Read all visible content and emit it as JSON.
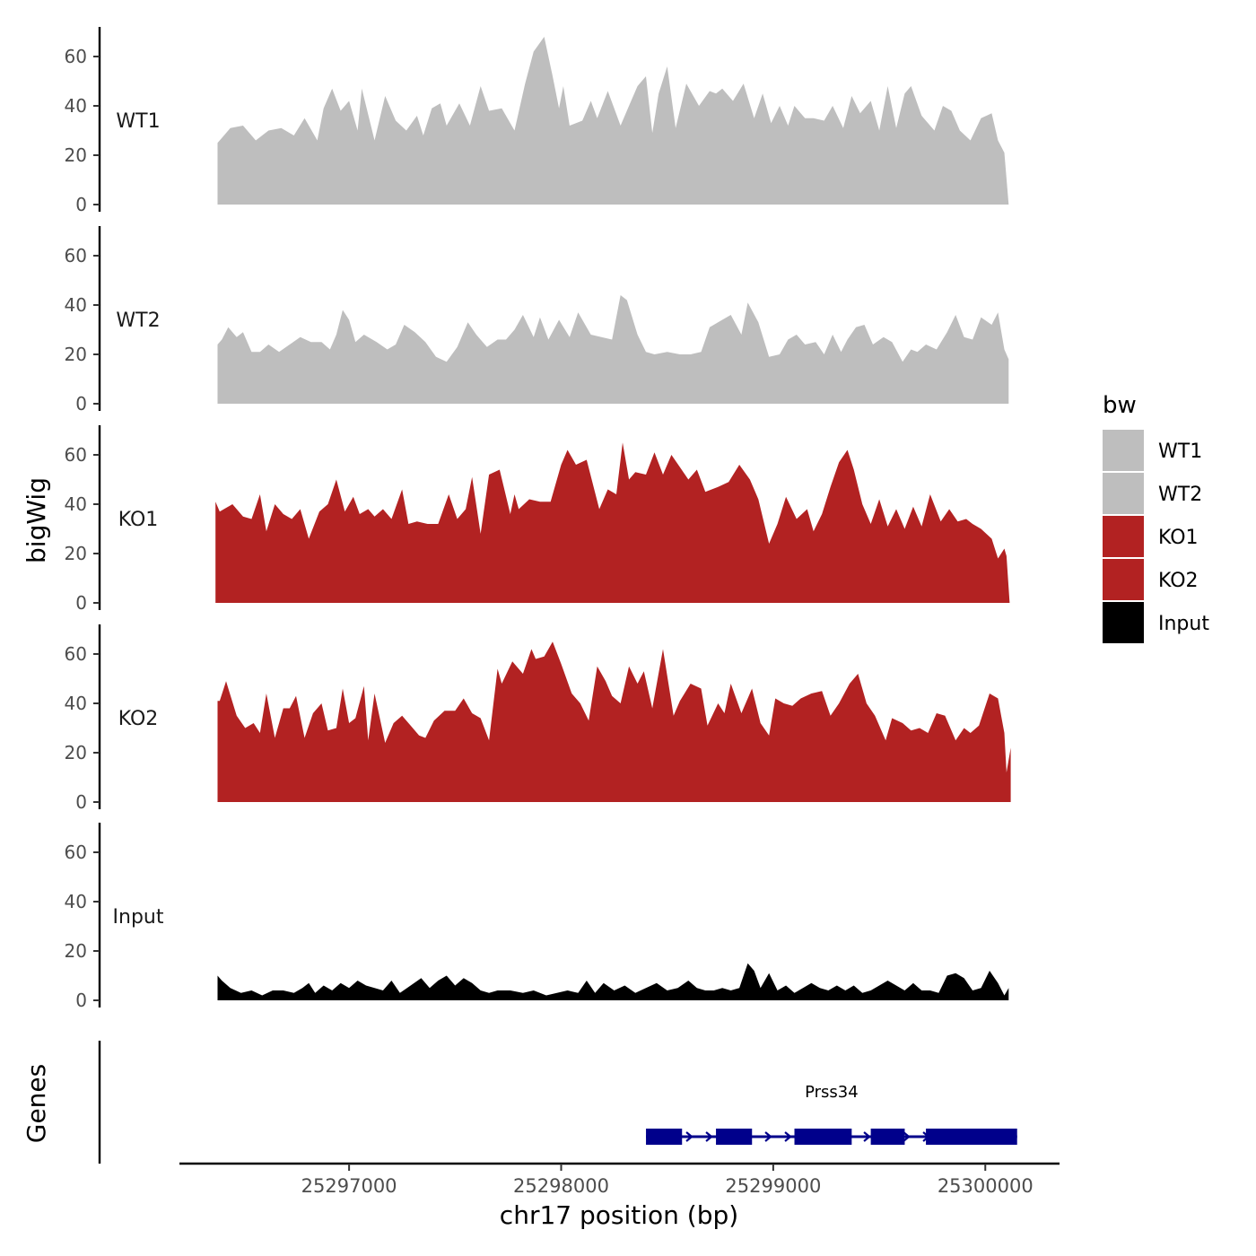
{
  "chart_data": {
    "type": "area",
    "title": "",
    "ylabel": "bigWig",
    "genes_ylabel": "Genes",
    "xlabel": "chr17 position (bp)",
    "xlim": [
      25296200,
      25300350
    ],
    "ylim": [
      0,
      72
    ],
    "y_ticks": [
      0,
      20,
      40,
      60
    ],
    "x_ticks": [
      25297000,
      25298000,
      25299000,
      25300000
    ],
    "x_tick_labels": [
      "25297000",
      "25298000",
      "25299000",
      "25300000"
    ],
    "legend": {
      "title": "bw",
      "placement": "right",
      "entries": [
        {
          "label": "WT1",
          "color": "#BEBEBE"
        },
        {
          "label": "WT2",
          "color": "#BEBEBE"
        },
        {
          "label": "KO1",
          "color": "#B22222"
        },
        {
          "label": "KO2",
          "color": "#B22222"
        },
        {
          "label": "Input",
          "color": "#000000"
        }
      ]
    },
    "series": [
      {
        "name": "WT1",
        "color": "#BEBEBE",
        "x": [
          25296380,
          25296400,
          25296440,
          25296500,
          25296560,
          25296620,
          25296680,
          25296740,
          25296790,
          25296850,
          25296880,
          25296920,
          25296960,
          25297000,
          25297040,
          25297060,
          25297120,
          25297170,
          25297220,
          25297270,
          25297320,
          25297350,
          25297390,
          25297430,
          25297460,
          25297520,
          25297570,
          25297620,
          25297660,
          25297720,
          25297780,
          25297830,
          25297870,
          25297920,
          25297960,
          25297990,
          25298010,
          25298040,
          25298100,
          25298140,
          25298170,
          25298220,
          25298280,
          25298320,
          25298360,
          25298400,
          25298430,
          25298460,
          25298500,
          25298540,
          25298590,
          25298650,
          25298700,
          25298730,
          25298760,
          25298810,
          25298860,
          25298910,
          25298950,
          25298990,
          25299030,
          25299070,
          25299100,
          25299150,
          25299190,
          25299240,
          25299280,
          25299330,
          25299370,
          25299410,
          25299460,
          25299500,
          25299540,
          25299580,
          25299620,
          25299650,
          25299700,
          25299760,
          25299800,
          25299840,
          25299880,
          25299930,
          25299980,
          25300030,
          25300060,
          25300090,
          25300110
        ],
        "y": [
          25,
          27,
          31,
          32,
          26,
          30,
          31,
          28,
          35,
          26,
          39,
          47,
          38,
          42,
          30,
          47,
          26,
          44,
          34,
          30,
          36,
          28,
          39,
          41,
          32,
          41,
          32,
          48,
          38,
          39,
          30,
          49,
          62,
          68,
          52,
          39,
          48,
          32,
          34,
          42,
          35,
          46,
          32,
          40,
          48,
          52,
          29,
          45,
          56,
          31,
          49,
          40,
          46,
          45,
          47,
          42,
          49,
          35,
          45,
          33,
          40,
          32,
          40,
          35,
          35,
          34,
          40,
          31,
          44,
          37,
          42,
          30,
          48,
          31,
          45,
          48,
          36,
          30,
          40,
          38,
          30,
          26,
          35,
          37,
          26,
          21,
          0
        ]
      },
      {
        "name": "WT2",
        "color": "#BEBEBE",
        "x": [
          25296380,
          25296400,
          25296430,
          25296470,
          25296500,
          25296540,
          25296580,
          25296620,
          25296670,
          25296720,
          25296770,
          25296820,
          25296870,
          25296910,
          25296940,
          25296970,
          25297000,
          25297030,
          25297070,
          25297130,
          25297180,
          25297220,
          25297260,
          25297310,
          25297360,
          25297410,
          25297460,
          25297510,
          25297560,
          25297600,
          25297650,
          25297700,
          25297740,
          25297780,
          25297820,
          25297870,
          25297900,
          25297940,
          25297990,
          25298040,
          25298080,
          25298140,
          25298190,
          25298240,
          25298280,
          25298310,
          25298360,
          25298400,
          25298440,
          25298500,
          25298560,
          25298610,
          25298660,
          25298700,
          25298760,
          25298800,
          25298850,
          25298880,
          25298930,
          25298980,
          25299030,
          25299070,
          25299110,
          25299150,
          25299200,
          25299240,
          25299280,
          25299320,
          25299350,
          25299390,
          25299430,
          25299470,
          25299520,
          25299560,
          25299610,
          25299650,
          25299680,
          25299720,
          25299770,
          25299820,
          25299860,
          25299900,
          25299940,
          25299980,
          25300030,
          25300060,
          25300090,
          25300110
        ],
        "y": [
          24,
          26,
          31,
          27,
          29,
          21,
          21,
          24,
          21,
          24,
          27,
          25,
          25,
          22,
          28,
          38,
          34,
          25,
          28,
          25,
          22,
          24,
          32,
          29,
          25,
          19,
          17,
          23,
          33,
          28,
          23,
          26,
          26,
          30,
          36,
          27,
          35,
          26,
          34,
          27,
          37,
          28,
          27,
          26,
          44,
          42,
          28,
          21,
          20,
          21,
          20,
          20,
          21,
          31,
          34,
          36,
          28,
          41,
          33,
          19,
          20,
          26,
          28,
          24,
          25,
          20,
          28,
          21,
          26,
          31,
          32,
          24,
          27,
          25,
          17,
          22,
          21,
          24,
          22,
          29,
          36,
          27,
          26,
          35,
          32,
          37,
          22,
          18
        ]
      },
      {
        "name": "KO1",
        "color": "#B22222",
        "x": [
          25296370,
          25296390,
          25296410,
          25296450,
          25296500,
          25296540,
          25296580,
          25296610,
          25296650,
          25296690,
          25296730,
          25296770,
          25296810,
          25296860,
          25296900,
          25296940,
          25296980,
          25297020,
          25297050,
          25297090,
          25297120,
          25297160,
          25297200,
          25297250,
          25297280,
          25297320,
          25297370,
          25297420,
          25297470,
          25297510,
          25297550,
          25297580,
          25297620,
          25297660,
          25297710,
          25297760,
          25297780,
          25297800,
          25297850,
          25297900,
          25297950,
          25298000,
          25298030,
          25298070,
          25298120,
          25298180,
          25298220,
          25298260,
          25298290,
          25298320,
          25298350,
          25298400,
          25298440,
          25298480,
          25298520,
          25298560,
          25298600,
          25298640,
          25298680,
          25298740,
          25298790,
          25298840,
          25298890,
          25298930,
          25298980,
          25299020,
          25299060,
          25299110,
          25299160,
          25299190,
          25299230,
          25299270,
          25299310,
          25299350,
          25299380,
          25299420,
          25299460,
          25299500,
          25299540,
          25299580,
          25299620,
          25299660,
          25299700,
          25299740,
          25299790,
          25299830,
          25299870,
          25299910,
          25299940,
          25299980,
          25300030,
          25300060,
          25300090,
          25300100,
          25300115
        ],
        "y": [
          41,
          37,
          38,
          40,
          35,
          34,
          44,
          29,
          40,
          36,
          34,
          38,
          26,
          37,
          40,
          50,
          37,
          43,
          36,
          38,
          35,
          38,
          34,
          46,
          32,
          33,
          32,
          32,
          44,
          34,
          38,
          51,
          28,
          52,
          54,
          36,
          44,
          38,
          42,
          41,
          41,
          56,
          62,
          56,
          58,
          38,
          46,
          44,
          65,
          50,
          53,
          52,
          61,
          52,
          60,
          55,
          50,
          54,
          45,
          47,
          49,
          56,
          50,
          42,
          24,
          32,
          43,
          34,
          38,
          29,
          36,
          47,
          57,
          62,
          54,
          40,
          32,
          42,
          31,
          38,
          30,
          39,
          31,
          44,
          33,
          38,
          33,
          34,
          32,
          30,
          26,
          18,
          22,
          19,
          0
        ]
      },
      {
        "name": "KO2",
        "color": "#B22222",
        "x": [
          25296380,
          25296390,
          25296420,
          25296470,
          25296510,
          25296550,
          25296580,
          25296610,
          25296650,
          25296690,
          25296720,
          25296750,
          25296790,
          25296830,
          25296870,
          25296900,
          25296940,
          25296970,
          25297000,
          25297030,
          25297070,
          25297090,
          25297120,
          25297140,
          25297170,
          25297210,
          25297250,
          25297290,
          25297330,
          25297360,
          25297400,
          25297450,
          25297500,
          25297540,
          25297580,
          25297620,
          25297660,
          25297700,
          25297720,
          25297770,
          25297820,
          25297860,
          25297880,
          25297920,
          25297960,
          25298000,
          25298050,
          25298090,
          25298130,
          25298170,
          25298210,
          25298240,
          25298280,
          25298320,
          25298360,
          25298390,
          25298430,
          25298480,
          25298530,
          25298560,
          25298610,
          25298660,
          25298690,
          25298740,
          25298770,
          25298800,
          25298850,
          25298900,
          25298940,
          25298980,
          25299010,
          25299050,
          25299090,
          25299130,
          25299180,
          25299230,
          25299270,
          25299310,
          25299360,
          25299400,
          25299440,
          25299480,
          25299530,
          25299560,
          25299610,
          25299650,
          25299690,
          25299730,
          25299770,
          25299810,
          25299860,
          25299900,
          25299930,
          25299970,
          25300020,
          25300060,
          25300090,
          25300100,
          25300120
        ],
        "y": [
          41,
          41,
          49,
          35,
          30,
          32,
          28,
          44,
          26,
          38,
          38,
          43,
          26,
          36,
          40,
          29,
          30,
          46,
          32,
          34,
          47,
          25,
          44,
          36,
          24,
          32,
          35,
          31,
          27,
          26,
          33,
          37,
          37,
          42,
          36,
          34,
          25,
          54,
          48,
          57,
          52,
          62,
          58,
          59,
          65,
          56,
          44,
          40,
          33,
          55,
          49,
          43,
          40,
          55,
          48,
          53,
          38,
          62,
          35,
          41,
          48,
          46,
          31,
          40,
          36,
          48,
          36,
          46,
          32,
          27,
          42,
          40,
          39,
          42,
          44,
          45,
          35,
          40,
          48,
          52,
          40,
          35,
          25,
          34,
          32,
          29,
          30,
          28,
          36,
          35,
          25,
          30,
          28,
          31,
          44,
          42,
          28,
          12,
          22
        ]
      },
      {
        "name": "Input",
        "color": "#000000",
        "x": [
          25296380,
          25296400,
          25296440,
          25296490,
          25296540,
          25296590,
          25296640,
          25296690,
          25296740,
          25296780,
          25296810,
          25296840,
          25296880,
          25296920,
          25296960,
          25297000,
          25297040,
          25297080,
          25297120,
          25297160,
          25297200,
          25297240,
          25297290,
          25297340,
          25297380,
          25297420,
          25297460,
          25297500,
          25297540,
          25297580,
          25297620,
          25297660,
          25297700,
          25297760,
          25297820,
          25297870,
          25297930,
          25297980,
          25298030,
          25298080,
          25298120,
          25298160,
          25298200,
          25298250,
          25298300,
          25298350,
          25298400,
          25298450,
          25298500,
          25298550,
          25298600,
          25298640,
          25298680,
          25298720,
          25298760,
          25298800,
          25298840,
          25298880,
          25298910,
          25298940,
          25298980,
          25299020,
          25299060,
          25299100,
          25299140,
          25299180,
          25299220,
          25299260,
          25299300,
          25299340,
          25299380,
          25299420,
          25299460,
          25299500,
          25299540,
          25299580,
          25299620,
          25299660,
          25299700,
          25299740,
          25299780,
          25299820,
          25299860,
          25299900,
          25299940,
          25299980,
          25300020,
          25300060,
          25300090,
          25300110
        ],
        "y": [
          10,
          8,
          5,
          3,
          4,
          2,
          4,
          4,
          3,
          5,
          7,
          3,
          6,
          4,
          7,
          5,
          8,
          6,
          5,
          4,
          8,
          3,
          6,
          9,
          5,
          8,
          10,
          6,
          9,
          7,
          4,
          3,
          4,
          4,
          3,
          4,
          2,
          3,
          4,
          3,
          8,
          3,
          7,
          4,
          6,
          3,
          5,
          7,
          4,
          5,
          8,
          5,
          4,
          4,
          5,
          4,
          5,
          15,
          12,
          5,
          11,
          4,
          6,
          3,
          5,
          7,
          5,
          4,
          6,
          4,
          6,
          3,
          4,
          6,
          8,
          6,
          4,
          7,
          4,
          4,
          3,
          10,
          11,
          9,
          4,
          5,
          12,
          7,
          2,
          5
        ]
      }
    ],
    "gene_track": {
      "gene_label": "Prss34",
      "strand": "+",
      "start": 25298400,
      "end": 25300150,
      "exons": [
        [
          25298400,
          25298570
        ],
        [
          25298730,
          25298900
        ],
        [
          25299100,
          25299370
        ],
        [
          25299460,
          25299620
        ],
        [
          25299720,
          25300150
        ]
      ]
    }
  }
}
